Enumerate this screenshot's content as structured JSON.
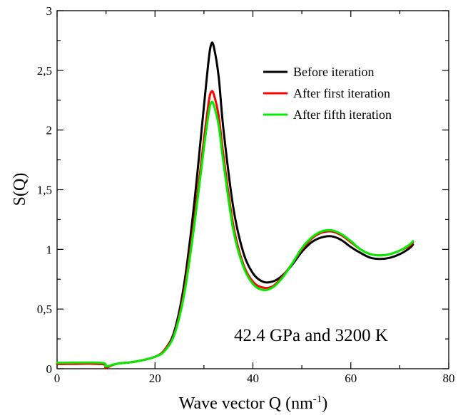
{
  "chart_data": {
    "type": "line",
    "xlabel": "Wave vector Q (nm",
    "xlabel_sup": "-1",
    "xlabel_close": ")",
    "ylabel": "S(Q)",
    "xlim": [
      0,
      80
    ],
    "ylim": [
      0,
      3
    ],
    "x_ticks": [
      0,
      20,
      40,
      60,
      80
    ],
    "y_ticks": [
      0,
      0.5,
      1,
      1.5,
      2,
      2.5,
      3
    ],
    "x_tick_labels": [
      "0",
      "20",
      "40",
      "60",
      "80"
    ],
    "y_tick_labels": [
      "0",
      "0,5",
      "1",
      "1,5",
      "2",
      "2,5",
      "3"
    ],
    "grid": false,
    "legend_position": "top-right",
    "annotation": "42.4 GPa and 3200 K",
    "series": [
      {
        "name": "Before iteration",
        "color": "#000000",
        "points": [
          [
            0,
            0.04
          ],
          [
            9,
            0.04
          ],
          [
            10,
            0.01
          ],
          [
            12,
            0.04
          ],
          [
            16,
            0.06
          ],
          [
            20,
            0.1
          ],
          [
            22,
            0.16
          ],
          [
            24,
            0.32
          ],
          [
            26,
            0.72
          ],
          [
            28,
            1.38
          ],
          [
            30,
            2.2
          ],
          [
            31,
            2.6
          ],
          [
            31.5,
            2.72
          ],
          [
            32,
            2.7
          ],
          [
            33,
            2.45
          ],
          [
            34,
            2.0
          ],
          [
            36,
            1.35
          ],
          [
            38,
            0.98
          ],
          [
            40,
            0.8
          ],
          [
            42,
            0.73
          ],
          [
            44,
            0.73
          ],
          [
            46,
            0.78
          ],
          [
            48,
            0.87
          ],
          [
            50,
            0.98
          ],
          [
            52,
            1.06
          ],
          [
            54,
            1.1
          ],
          [
            56,
            1.11
          ],
          [
            58,
            1.08
          ],
          [
            60,
            1.02
          ],
          [
            62,
            0.97
          ],
          [
            64,
            0.93
          ],
          [
            66,
            0.92
          ],
          [
            68,
            0.93
          ],
          [
            70,
            0.96
          ],
          [
            72,
            1.01
          ],
          [
            72.7,
            1.04
          ]
        ]
      },
      {
        "name": "After first iteration",
        "color": "#ff0000",
        "points": [
          [
            0,
            0.04
          ],
          [
            9,
            0.04
          ],
          [
            10,
            0.01
          ],
          [
            12,
            0.04
          ],
          [
            16,
            0.06
          ],
          [
            20,
            0.1
          ],
          [
            22,
            0.16
          ],
          [
            24,
            0.3
          ],
          [
            26,
            0.66
          ],
          [
            28,
            1.24
          ],
          [
            30,
            1.92
          ],
          [
            31,
            2.24
          ],
          [
            31.5,
            2.32
          ],
          [
            32,
            2.3
          ],
          [
            33,
            2.12
          ],
          [
            34,
            1.78
          ],
          [
            36,
            1.2
          ],
          [
            38,
            0.88
          ],
          [
            40,
            0.73
          ],
          [
            42,
            0.68
          ],
          [
            44,
            0.69
          ],
          [
            46,
            0.77
          ],
          [
            48,
            0.88
          ],
          [
            50,
            1.0
          ],
          [
            52,
            1.09
          ],
          [
            54,
            1.14
          ],
          [
            56,
            1.15
          ],
          [
            58,
            1.12
          ],
          [
            60,
            1.06
          ],
          [
            62,
            1.0
          ],
          [
            64,
            0.96
          ],
          [
            66,
            0.95
          ],
          [
            68,
            0.96
          ],
          [
            70,
            0.99
          ],
          [
            72,
            1.03
          ],
          [
            72.7,
            1.06
          ]
        ]
      },
      {
        "name": "After fifth iteration",
        "color": "#00ee00",
        "points": [
          [
            0,
            0.05
          ],
          [
            9,
            0.05
          ],
          [
            10,
            0.02
          ],
          [
            12,
            0.04
          ],
          [
            16,
            0.06
          ],
          [
            20,
            0.1
          ],
          [
            22,
            0.15
          ],
          [
            24,
            0.29
          ],
          [
            26,
            0.63
          ],
          [
            28,
            1.19
          ],
          [
            30,
            1.85
          ],
          [
            31,
            2.15
          ],
          [
            31.5,
            2.23
          ],
          [
            32,
            2.21
          ],
          [
            33,
            2.04
          ],
          [
            34,
            1.72
          ],
          [
            36,
            1.16
          ],
          [
            38,
            0.86
          ],
          [
            40,
            0.71
          ],
          [
            42,
            0.66
          ],
          [
            44,
            0.68
          ],
          [
            46,
            0.76
          ],
          [
            48,
            0.88
          ],
          [
            50,
            1.01
          ],
          [
            52,
            1.1
          ],
          [
            54,
            1.15
          ],
          [
            56,
            1.16
          ],
          [
            58,
            1.13
          ],
          [
            60,
            1.07
          ],
          [
            62,
            1.0
          ],
          [
            64,
            0.96
          ],
          [
            66,
            0.95
          ],
          [
            68,
            0.96
          ],
          [
            70,
            0.99
          ],
          [
            72,
            1.04
          ],
          [
            72.7,
            1.07
          ]
        ]
      }
    ]
  }
}
